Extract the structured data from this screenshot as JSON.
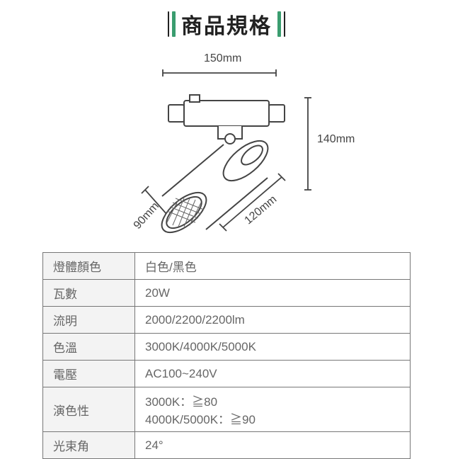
{
  "title": "商品規格",
  "accent_color": "#3a9d6f",
  "diagram": {
    "width_label": "150mm",
    "height_label": "140mm",
    "depth1_label": "90mm",
    "depth2_label": "120mm",
    "stroke": "#444",
    "fill": "#ffffff"
  },
  "specs": [
    {
      "label": "燈體顏色",
      "value": "白色/黑色"
    },
    {
      "label": "瓦數",
      "value": "20W"
    },
    {
      "label": "流明",
      "value": "2000/2200/2200lm"
    },
    {
      "label": "色溫",
      "value": "3000K/4000K/5000K"
    },
    {
      "label": "電壓",
      "value": "AC100~240V"
    },
    {
      "label": "演色性",
      "value": "3000K：≧80\n4000K/5000K：≧90"
    },
    {
      "label": "光束角",
      "value": "24°"
    }
  ]
}
